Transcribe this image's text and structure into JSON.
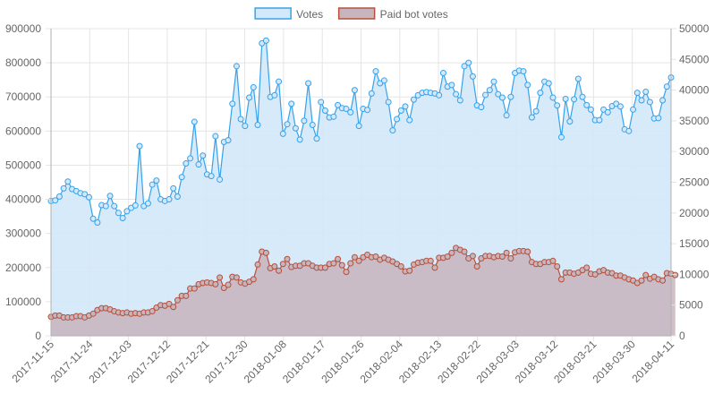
{
  "chart_data": {
    "type": "line",
    "series": [
      {
        "name": "Votes",
        "axis": "left",
        "line_color": "#36a2eb",
        "fill_color": "#d3e8fa",
        "values": [
          395000,
          397000,
          408000,
          432000,
          452000,
          430000,
          424000,
          418000,
          415000,
          406000,
          343000,
          332000,
          383000,
          380000,
          410000,
          380000,
          360000,
          345000,
          365000,
          375000,
          382000,
          556000,
          380000,
          388000,
          443000,
          455000,
          400000,
          395000,
          400000,
          432000,
          408000,
          465000,
          505000,
          520000,
          627000,
          502000,
          528000,
          473000,
          468000,
          585000,
          458000,
          568000,
          573000,
          680000,
          790000,
          635000,
          615000,
          698000,
          728000,
          618000,
          857000,
          865000,
          700000,
          705000,
          745000,
          592000,
          620000,
          680000,
          608000,
          575000,
          630000,
          740000,
          618000,
          578000,
          685000,
          660000,
          640000,
          642000,
          676000,
          667000,
          665000,
          655000,
          720000,
          615000,
          665000,
          662000,
          710000,
          775000,
          740000,
          748000,
          685000,
          602000,
          635000,
          660000,
          672000,
          632000,
          692000,
          705000,
          712000,
          714000,
          712000,
          710000,
          705000,
          770000,
          730000,
          735000,
          708000,
          690000,
          790000,
          800000,
          760000,
          675000,
          670000,
          706000,
          720000,
          745000,
          708000,
          698000,
          646000,
          700000,
          770000,
          777000,
          775000,
          735000,
          640000,
          658000,
          712000,
          745000,
          740000,
          698000,
          675000,
          582000,
          694000,
          628000,
          693000,
          753000,
          700000,
          676000,
          663000,
          632000,
          632000,
          663000,
          655000,
          673000,
          680000,
          672000,
          605000,
          600000,
          663000,
          712000,
          690000,
          715000,
          685000,
          637000,
          638000,
          690000,
          730000,
          757000
        ]
      },
      {
        "name": "Paid bot votes",
        "axis": "right",
        "line_color": "#b5503a",
        "fill_color": "#c8b4bc",
        "values": [
          3100,
          3300,
          3300,
          3000,
          3000,
          3000,
          3200,
          3200,
          3000,
          3300,
          3600,
          4200,
          4500,
          4500,
          4300,
          4000,
          3800,
          3700,
          3800,
          3600,
          3700,
          3600,
          3800,
          3800,
          4000,
          4600,
          5000,
          4900,
          5200,
          4700,
          5800,
          6500,
          6500,
          7700,
          7700,
          8400,
          8600,
          8700,
          8600,
          8400,
          9500,
          7800,
          8300,
          9600,
          9500,
          8700,
          8500,
          8800,
          9200,
          11600,
          13700,
          13500,
          11000,
          11300,
          10600,
          11700,
          12500,
          11200,
          11400,
          11400,
          11800,
          11800,
          11400,
          11100,
          11100,
          11100,
          11700,
          11800,
          12500,
          11500,
          10400,
          11800,
          12800,
          12200,
          12800,
          13200,
          12800,
          12900,
          12400,
          12700,
          12400,
          12100,
          11700,
          11300,
          10500,
          10600,
          11600,
          11900,
          12000,
          12200,
          12200,
          11100,
          12700,
          12700,
          12900,
          13500,
          14300,
          14000,
          13700,
          12600,
          13000,
          11300,
          12600,
          13000,
          13000,
          12800,
          13000,
          12900,
          13500,
          12600,
          13600,
          13800,
          13800,
          13700,
          12000,
          11700,
          11700,
          12000,
          12000,
          12200,
          11300,
          9200,
          10300,
          10300,
          10100,
          10300,
          10700,
          11100,
          10100,
          10000,
          10500,
          10700,
          10300,
          10200,
          9800,
          9800,
          9500,
          9200,
          9000,
          8600,
          9000,
          9900,
          9300,
          9600,
          9200,
          9000,
          10200,
          10100,
          9900
        ]
      }
    ],
    "x_tick_labels": [
      "2017-11-15",
      "2017-11-24",
      "2017-12-03",
      "2017-12-12",
      "2017-12-21",
      "2017-12-30",
      "2018-01-08",
      "2018-01-17",
      "2018-01-26",
      "2018-02-04",
      "2018-02-13",
      "2018-02-22",
      "2018-03-03",
      "2018-03-12",
      "2018-03-21",
      "2018-03-30",
      "2018-04-11"
    ],
    "y_left": {
      "min": 0,
      "max": 900000,
      "step": 100000,
      "tick_labels": [
        "0",
        "100000",
        "200000",
        "300000",
        "400000",
        "500000",
        "600000",
        "700000",
        "800000",
        "900000"
      ]
    },
    "y_right": {
      "min": 0,
      "max": 50000,
      "step": 5000,
      "tick_labels": [
        "0",
        "5000",
        "10000",
        "15000",
        "20000",
        "25000",
        "30000",
        "35000",
        "40000",
        "45000",
        "50000"
      ]
    },
    "grid": true,
    "legend_position": "top-center",
    "grid_color": "#e5e5e5",
    "axis_color": "#b0b0b0"
  }
}
